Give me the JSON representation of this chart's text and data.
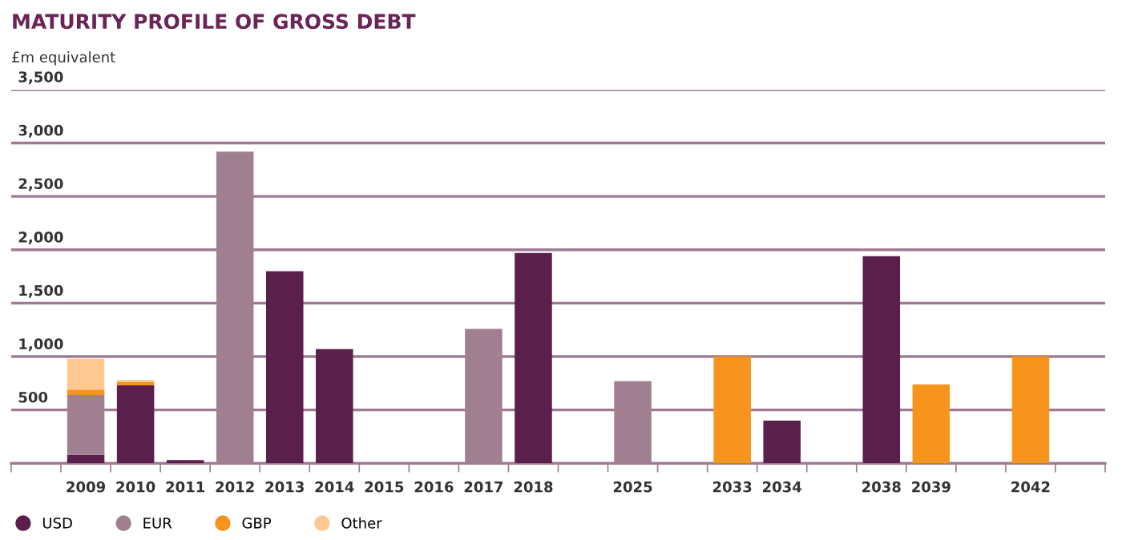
{
  "chart_data": {
    "type": "bar",
    "title": "MATURITY PROFILE OF GROSS DEBT",
    "ylabel": "£m equivalent",
    "stacked": true,
    "categories": [
      null,
      "2009",
      "2010",
      "2011",
      "2012",
      "2013",
      "2014",
      "2015",
      "2016",
      "2017",
      "2018",
      null,
      "2025",
      null,
      "2033",
      "2034",
      null,
      "2038",
      "2039",
      null,
      "2042",
      null
    ],
    "series": [
      {
        "name": "USD",
        "color": "#5a1f4a",
        "values": [
          0,
          80,
          730,
          30,
          0,
          1800,
          1070,
          0,
          0,
          0,
          1970,
          0,
          0,
          0,
          0,
          400,
          0,
          1940,
          0,
          0,
          0,
          0
        ]
      },
      {
        "name": "EUR",
        "color": "#a08090",
        "values": [
          0,
          560,
          0,
          0,
          2920,
          0,
          0,
          0,
          0,
          1260,
          0,
          0,
          770,
          0,
          0,
          0,
          0,
          0,
          0,
          0,
          0,
          0
        ]
      },
      {
        "name": "GBP",
        "color": "#f7941d",
        "values": [
          0,
          50,
          30,
          0,
          0,
          0,
          0,
          0,
          0,
          0,
          0,
          0,
          0,
          0,
          1000,
          0,
          0,
          0,
          740,
          0,
          1000,
          0
        ]
      },
      {
        "name": "Other",
        "color": "#fdc891",
        "values": [
          0,
          290,
          20,
          0,
          0,
          0,
          0,
          0,
          0,
          0,
          0,
          0,
          0,
          0,
          0,
          0,
          0,
          0,
          0,
          0,
          0,
          0
        ]
      }
    ],
    "ylim": [
      0,
      3500
    ],
    "yticks": [
      {
        "value": 0,
        "label": null
      },
      500,
      {
        "value": 1000,
        "label": "1,000"
      },
      {
        "value": 1500,
        "label": "1,500"
      },
      {
        "value": 2000,
        "label": "2,000"
      },
      {
        "value": 2500,
        "label": "2,500"
      },
      {
        "value": 3000,
        "label": "3,000"
      },
      {
        "value": 3500,
        "label": "3,500"
      }
    ],
    "grid": "y",
    "legend": "bottom left"
  }
}
